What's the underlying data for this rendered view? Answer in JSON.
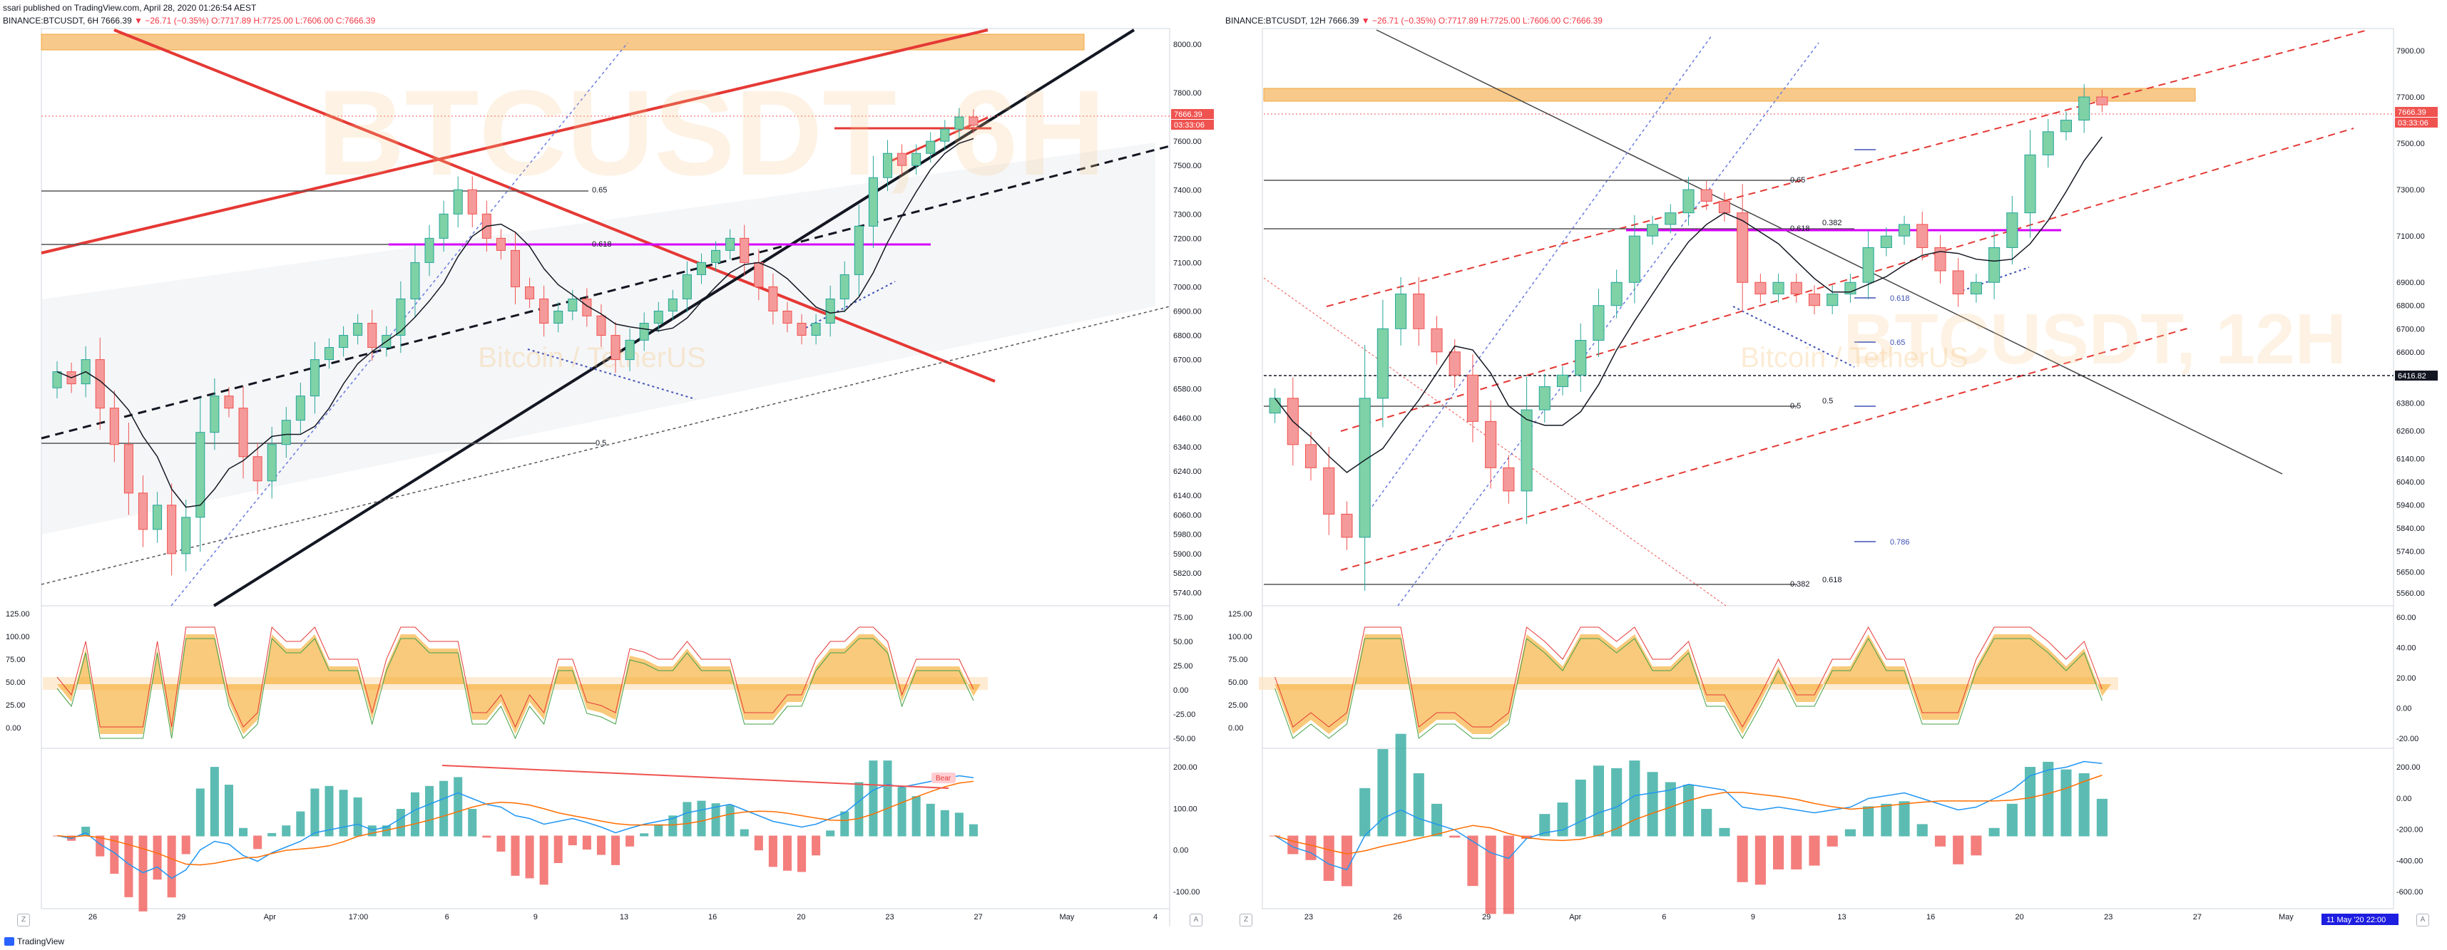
{
  "header": {
    "publisher": "ssari published on TradingView.com, April 28, 2020 01:26:54 AEST"
  },
  "panels": [
    {
      "symbol": "BINANCE:BTCUSDT, 6H",
      "last": "7666.39",
      "change": "▼ −26.71 (−0.35%)",
      "ohlc": "O:7717.89 H:7725.00 L:7606.00 C:7666.39",
      "watermark_symbol": "BTCUSDT, 6H",
      "watermark_name": "Bitcoin / TetherUS",
      "price_label": "7666.39",
      "timer_label": "03:33:06",
      "fib_labels": [
        "0.65",
        "0.618",
        "0.5"
      ],
      "bear_label": "Bear"
    },
    {
      "symbol": "BINANCE:BTCUSDT, 12H",
      "last": "7666.39",
      "change": "▼ −26.71 (−0.35%)",
      "ohlc": "O:7717.89 H:7725.00 L:7606.00 C:7666.39",
      "watermark_symbol": "BTCUSDT, 12H",
      "watermark_name": "Bitcoin / TetherUS",
      "price_label": "7666.39",
      "timer_label": "03:33:06",
      "level_label": "6416.82",
      "fib_labels": [
        "0.65",
        "0.618",
        "0.382",
        "0.5",
        "0.5",
        "0.618",
        "0.65",
        "0.786",
        "0.382",
        "0.618"
      ],
      "date_badge": "11 May '20   22:00"
    }
  ],
  "chart_data": [
    {
      "type": "candlestick",
      "title": "BINANCE:BTCUSDT, 6H",
      "y_ticks": [
        5740,
        5820,
        5900,
        5980,
        6060,
        6140,
        6240,
        6340,
        6460,
        6580,
        6700,
        6800,
        6900,
        7000,
        7100,
        7200,
        7300,
        7400,
        7500,
        7600,
        7800,
        8000
      ],
      "ylim": [
        5700,
        8050
      ],
      "x_ticks": [
        "26",
        "29",
        "Apr",
        "17:00",
        "6",
        "9",
        "13",
        "16",
        "20",
        "23",
        "27",
        "May",
        "4"
      ],
      "close_series": [
        6650,
        6600,
        6700,
        6500,
        6350,
        6150,
        6000,
        6100,
        5900,
        6050,
        6400,
        6550,
        6500,
        6300,
        6200,
        6350,
        6450,
        6550,
        6700,
        6750,
        6800,
        6850,
        6750,
        6800,
        6950,
        7100,
        7200,
        7300,
        7400,
        7300,
        7200,
        7150,
        7000,
        6950,
        6850,
        6900,
        6950,
        6880,
        6800,
        6700,
        6780,
        6850,
        6900,
        6950,
        7050,
        7100,
        7150,
        7200,
        7100,
        7000,
        6900,
        6850,
        6800,
        6850,
        6950,
        7050,
        7250,
        7450,
        7550,
        7500,
        7550,
        7600,
        7650,
        7700,
        7666
      ],
      "resistance_zone": [
        7950,
        8010
      ],
      "last_price": 7666.39,
      "fib_levels": [
        {
          "label": "0.65",
          "value": 7340
        },
        {
          "label": "0.618",
          "value": 7080
        },
        {
          "label": "0.5",
          "value": 6200
        }
      ],
      "oscillator": {
        "y_ticks_left": [
          0.0,
          25.0,
          50.0,
          75.0,
          100.0,
          125.0
        ],
        "y_ticks_right": [
          75.0,
          50.0,
          25.0,
          0.0,
          -25.0,
          -50.0
        ]
      },
      "macd": {
        "y_ticks": [
          200.0,
          100.0,
          0.0,
          -100.0
        ],
        "annotation": "Bear"
      }
    },
    {
      "type": "candlestick",
      "title": "BINANCE:BTCUSDT, 12H",
      "y_ticks": [
        5560,
        5650,
        5740,
        5840,
        5940,
        6040,
        6140,
        6260,
        6380,
        6500,
        6600,
        6700,
        6800,
        6900,
        7100,
        7300,
        7500,
        7700,
        7900
      ],
      "ylim": [
        5520,
        7980
      ],
      "x_ticks": [
        "23",
        "26",
        "29",
        "Apr",
        "6",
        "9",
        "13",
        "16",
        "20",
        "23",
        "27",
        "May",
        "4"
      ],
      "close_series": [
        6400,
        6200,
        6100,
        5900,
        5800,
        6400,
        6700,
        6850,
        6700,
        6600,
        6500,
        6300,
        6100,
        6000,
        6350,
        6450,
        6500,
        6650,
        6800,
        6900,
        7100,
        7150,
        7200,
        7300,
        7250,
        7200,
        6900,
        6850,
        6900,
        6850,
        6800,
        6850,
        6900,
        7050,
        7100,
        7150,
        7050,
        6950,
        6850,
        6900,
        7050,
        7200,
        7450,
        7550,
        7600,
        7700,
        7666
      ],
      "resistance_zone": [
        7700,
        7780
      ],
      "last_price": 7666.39,
      "horizontal_level": 6416.82,
      "oscillator": {
        "y_ticks_left": [
          0.0,
          25.0,
          50.0,
          75.0,
          100.0,
          125.0
        ],
        "y_ticks_right": [
          60.0,
          40.0,
          20.0,
          0.0,
          -20.0
        ]
      },
      "macd": {
        "y_ticks": [
          200.0,
          0.0,
          -200.0,
          -400.0,
          -600.0
        ]
      }
    }
  ],
  "footer": {
    "brand": "TradingView",
    "zone_button": "Z",
    "auto_button": "A"
  },
  "colors": {
    "bull": "#26a69a",
    "bear": "#ef5350",
    "accent": "#2962ff",
    "resistance": "#f7c98a",
    "trend_red": "#e53935",
    "osc_fill": "#f5a623"
  }
}
